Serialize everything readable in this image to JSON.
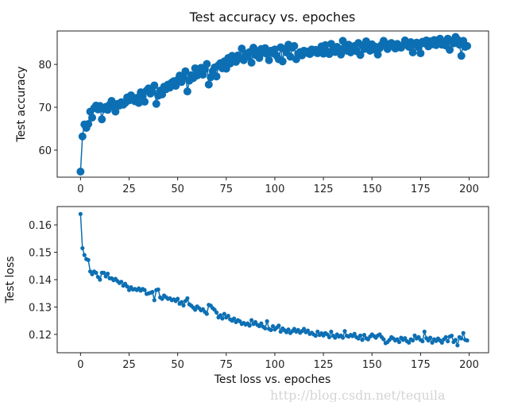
{
  "chart_data": [
    {
      "type": "line",
      "title": "Test accuracy vs. epoches",
      "xlabel": "",
      "ylabel": "Test accuracy",
      "xlim": [
        -12,
        210
      ],
      "ylim": [
        53.7,
        87.8
      ],
      "xticks": [
        0,
        25,
        50,
        75,
        100,
        125,
        150,
        175,
        200
      ],
      "yticks": [
        60,
        70,
        80
      ],
      "grid": false,
      "marker": "circle-large",
      "color": "#0d6fb3",
      "values": [
        55.0,
        63.2,
        66.0,
        65.2,
        66.1,
        69.0,
        67.6,
        69.8,
        70.4,
        69.5,
        70.3,
        67.2,
        69.6,
        70.1,
        69.4,
        70.6,
        71.5,
        70.2,
        69.0,
        70.8,
        70.4,
        71.2,
        70.6,
        71.0,
        72.3,
        71.6,
        72.8,
        72.1,
        71.4,
        72.2,
        71.0,
        73.5,
        72.6,
        71.3,
        73.9,
        74.4,
        73.2,
        73.6,
        75.1,
        70.8,
        72.7,
        73.9,
        73.0,
        74.8,
        74.2,
        75.3,
        74.6,
        75.8,
        76.1,
        75.0,
        76.4,
        77.4,
        75.9,
        77.0,
        78.4,
        73.7,
        76.2,
        77.5,
        76.8,
        79.1,
        77.4,
        78.5,
        79.2,
        77.6,
        78.9,
        80.1,
        75.3,
        77.0,
        78.4,
        79.3,
        77.2,
        79.8,
        80.3,
        79.1,
        80.7,
        79.0,
        81.5,
        80.2,
        82.0,
        81.1,
        80.6,
        82.1,
        81.4,
        83.7,
        81.0,
        82.5,
        81.8,
        82.9,
        80.4,
        83.9,
        82.2,
        83.1,
        81.5,
        83.6,
        82.7,
        83.8,
        82.4,
        81.0,
        83.2,
        82.6,
        83.5,
        82.0,
        81.2,
        84.0,
        80.7,
        83.6,
        82.8,
        84.6,
        81.8,
        83.9,
        84.3,
        81.2,
        82.5,
        82.9,
        82.1,
        83.2,
        82.7,
        83.0,
        82.4,
        83.5,
        82.9,
        83.4,
        82.6,
        83.1,
        84.2,
        82.5,
        84.5,
        83.0,
        82.4,
        84.8,
        83.5,
        82.9,
        84.1,
        83.7,
        82.3,
        85.5,
        83.9,
        83.2,
        84.6,
        82.8,
        83.7,
        84.3,
        83.1,
        85.0,
        82.2,
        84.4,
        83.6,
        85.4,
        84.0,
        83.2,
        84.7,
        83.5,
        84.1,
        82.3,
        83.8,
        84.6,
        85.5,
        84.9,
        83.6,
        84.2,
        85.0,
        84.3,
        83.7,
        84.8,
        84.0,
        83.9,
        84.5,
        85.6,
        84.8,
        84.1,
        85.2,
        82.8,
        84.6,
        85.1,
        84.0,
        82.6,
        85.3,
        84.9,
        85.6,
        84.2,
        85.4,
        84.7,
        85.7,
        84.5,
        85.0,
        86.0,
        84.6,
        85.3,
        84.4,
        86.0,
        83.4,
        85.5,
        84.9,
        86.4,
        85.8,
        84.6,
        82.0,
        85.5,
        84.1,
        84.3
      ]
    },
    {
      "type": "line",
      "title": "",
      "xlabel": "Test loss vs. epoches",
      "ylabel": "Test loss",
      "xlim": [
        -12,
        210
      ],
      "ylim": [
        0.1133,
        0.1667
      ],
      "xticks": [
        0,
        25,
        50,
        75,
        100,
        125,
        150,
        175,
        200
      ],
      "yticks": [
        0.12,
        0.13,
        0.14,
        0.15,
        0.16
      ],
      "grid": false,
      "marker": "circle-small",
      "color": "#0d6fb3",
      "values": [
        0.164,
        0.1515,
        0.149,
        0.1475,
        0.1472,
        0.143,
        0.142,
        0.143,
        0.1425,
        0.141,
        0.14,
        0.1425,
        0.1425,
        0.1412,
        0.1422,
        0.1405,
        0.1405,
        0.1398,
        0.1403,
        0.1395,
        0.1388,
        0.1392,
        0.1378,
        0.1385,
        0.1375,
        0.1362,
        0.1372,
        0.1364,
        0.1366,
        0.1362,
        0.1368,
        0.136,
        0.1366,
        0.1362,
        0.1348,
        0.135,
        0.1352,
        0.1355,
        0.1325,
        0.1362,
        0.1364,
        0.1335,
        0.133,
        0.1342,
        0.1336,
        0.133,
        0.1332,
        0.1325,
        0.1328,
        0.1322,
        0.133,
        0.1312,
        0.1318,
        0.1306,
        0.1322,
        0.1332,
        0.131,
        0.1305,
        0.1298,
        0.129,
        0.1302,
        0.1296,
        0.1288,
        0.1292,
        0.1282,
        0.1275,
        0.1308,
        0.1305,
        0.1296,
        0.129,
        0.128,
        0.1262,
        0.127,
        0.1258,
        0.1275,
        0.1262,
        0.1268,
        0.1255,
        0.125,
        0.1258,
        0.1245,
        0.1252,
        0.1248,
        0.1238,
        0.1242,
        0.1236,
        0.124,
        0.1232,
        0.1252,
        0.1238,
        0.1245,
        0.1235,
        0.123,
        0.124,
        0.1228,
        0.1222,
        0.1248,
        0.122,
        0.1216,
        0.123,
        0.1218,
        0.1225,
        0.1232,
        0.121,
        0.1222,
        0.1215,
        0.1208,
        0.1218,
        0.1205,
        0.1212,
        0.122,
        0.121,
        0.1216,
        0.1206,
        0.1212,
        0.122,
        0.1208,
        0.1214,
        0.1202,
        0.1206,
        0.12,
        0.1195,
        0.121,
        0.1198,
        0.1204,
        0.1196,
        0.1205,
        0.12,
        0.119,
        0.121,
        0.1195,
        0.1188,
        0.12,
        0.1192,
        0.1196,
        0.1188,
        0.1212,
        0.1195,
        0.1192,
        0.1198,
        0.1194,
        0.1202,
        0.119,
        0.1185,
        0.1196,
        0.118,
        0.1198,
        0.1186,
        0.1182,
        0.1192,
        0.12,
        0.1194,
        0.1188,
        0.1196,
        0.12,
        0.119,
        0.1182,
        0.1168,
        0.1172,
        0.118,
        0.119,
        0.1185,
        0.1178,
        0.1182,
        0.1172,
        0.1188,
        0.118,
        0.1186,
        0.1175,
        0.117,
        0.1182,
        0.1178,
        0.1196,
        0.1185,
        0.119,
        0.118,
        0.1175,
        0.121,
        0.1186,
        0.1178,
        0.1188,
        0.117,
        0.1182,
        0.1176,
        0.1185,
        0.1178,
        0.117,
        0.1182,
        0.119,
        0.1175,
        0.1192,
        0.1195,
        0.1172,
        0.118,
        0.116,
        0.119,
        0.1185,
        0.1205,
        0.118,
        0.1178
      ]
    }
  ],
  "watermark": "http://blog.csdn.net/tequila"
}
